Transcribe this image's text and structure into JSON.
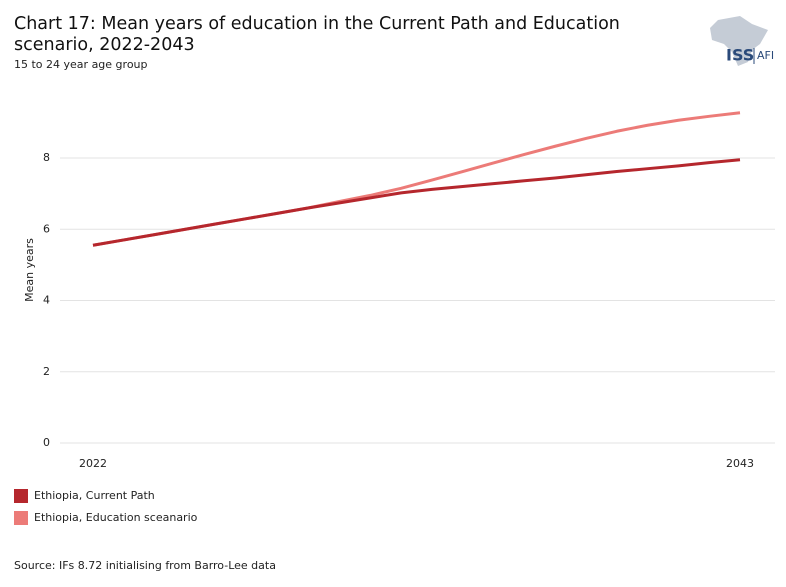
{
  "chart_data": {
    "type": "line",
    "title": "Chart 17: Mean years of education in the Current Path and Education scenario, 2022-2043",
    "subtitle": "15 to 24 year age group",
    "y_label": "Mean years",
    "source": "Source: IFs 8.72 initialising from Barro-Lee data",
    "x": [
      2022,
      2023,
      2024,
      2025,
      2026,
      2027,
      2028,
      2029,
      2030,
      2031,
      2032,
      2033,
      2034,
      2035,
      2036,
      2037,
      2038,
      2039,
      2040,
      2041,
      2042,
      2043
    ],
    "xlim": [
      2022,
      2043
    ],
    "xticks": [
      2022,
      2043
    ],
    "ylim": [
      0,
      9.6
    ],
    "yticks": [
      0,
      2,
      4,
      6,
      8
    ],
    "grid": true,
    "legend": "bottom-left",
    "series": [
      {
        "name": "Ethiopia, Current Path",
        "color": "#b5272d",
        "values": [
          5.55,
          5.7,
          5.85,
          6.0,
          6.15,
          6.3,
          6.45,
          6.6,
          6.74,
          6.88,
          7.02,
          7.12,
          7.2,
          7.28,
          7.36,
          7.44,
          7.53,
          7.62,
          7.7,
          7.78,
          7.87,
          7.95
        ]
      },
      {
        "name": "Ethiopia, Education sceanario",
        "color": "#ec7b78",
        "values": [
          5.55,
          5.7,
          5.85,
          6.0,
          6.15,
          6.3,
          6.45,
          6.6,
          6.78,
          6.95,
          7.15,
          7.38,
          7.62,
          7.86,
          8.1,
          8.33,
          8.55,
          8.75,
          8.92,
          9.06,
          9.17,
          9.27
        ]
      }
    ]
  },
  "logo": [
    "ISS",
    "AFI"
  ]
}
